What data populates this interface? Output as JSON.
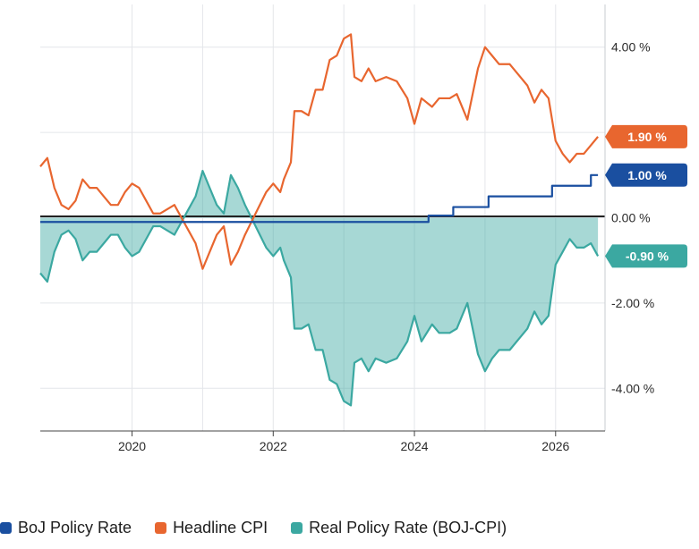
{
  "chart_data": {
    "type": "line",
    "x_tick_labels": [
      "2020",
      "2022",
      "2024",
      "2026"
    ],
    "y_tick_labels": [
      "4.00 %",
      "0.00 %",
      "-2.00 %",
      "-4.00 %"
    ],
    "xlim": [
      2018.7,
      2026.7
    ],
    "ylim": [
      -5.0,
      5.0
    ],
    "grid": true,
    "legend_position": "bottom-left",
    "series": [
      {
        "name": "BoJ Policy Rate",
        "key": "boj",
        "color": "#1a4fa0",
        "last_value_label": "1.00 %",
        "points": [
          [
            2018.7,
            -0.1
          ],
          [
            2024.2,
            -0.1
          ],
          [
            2024.2,
            0.05
          ],
          [
            2024.55,
            0.05
          ],
          [
            2024.55,
            0.25
          ],
          [
            2025.05,
            0.25
          ],
          [
            2025.05,
            0.5
          ],
          [
            2025.95,
            0.5
          ],
          [
            2025.95,
            0.75
          ],
          [
            2026.5,
            0.75
          ],
          [
            2026.5,
            1.0
          ],
          [
            2026.6,
            1.0
          ]
        ]
      },
      {
        "name": "Headline CPI",
        "key": "cpi",
        "color": "#e8662f",
        "last_value_label": "1.90 %",
        "points": [
          [
            2018.7,
            1.2
          ],
          [
            2018.8,
            1.4
          ],
          [
            2018.9,
            0.7
          ],
          [
            2019.0,
            0.3
          ],
          [
            2019.1,
            0.2
          ],
          [
            2019.2,
            0.4
          ],
          [
            2019.3,
            0.9
          ],
          [
            2019.4,
            0.7
          ],
          [
            2019.5,
            0.7
          ],
          [
            2019.6,
            0.5
          ],
          [
            2019.7,
            0.3
          ],
          [
            2019.8,
            0.3
          ],
          [
            2019.9,
            0.6
          ],
          [
            2020.0,
            0.8
          ],
          [
            2020.1,
            0.7
          ],
          [
            2020.2,
            0.4
          ],
          [
            2020.3,
            0.1
          ],
          [
            2020.4,
            0.1
          ],
          [
            2020.5,
            0.2
          ],
          [
            2020.6,
            0.3
          ],
          [
            2020.7,
            0.0
          ],
          [
            2020.8,
            -0.3
          ],
          [
            2020.9,
            -0.6
          ],
          [
            2021.0,
            -1.2
          ],
          [
            2021.1,
            -0.8
          ],
          [
            2021.2,
            -0.4
          ],
          [
            2021.3,
            -0.2
          ],
          [
            2021.4,
            -1.1
          ],
          [
            2021.5,
            -0.8
          ],
          [
            2021.6,
            -0.4
          ],
          [
            2021.75,
            0.1
          ],
          [
            2021.9,
            0.6
          ],
          [
            2022.0,
            0.8
          ],
          [
            2022.1,
            0.6
          ],
          [
            2022.15,
            0.9
          ],
          [
            2022.25,
            1.3
          ],
          [
            2022.3,
            2.5
          ],
          [
            2022.4,
            2.5
          ],
          [
            2022.5,
            2.4
          ],
          [
            2022.6,
            3.0
          ],
          [
            2022.7,
            3.0
          ],
          [
            2022.8,
            3.7
          ],
          [
            2022.9,
            3.8
          ],
          [
            2023.0,
            4.2
          ],
          [
            2023.1,
            4.3
          ],
          [
            2023.15,
            3.3
          ],
          [
            2023.25,
            3.2
          ],
          [
            2023.35,
            3.5
          ],
          [
            2023.45,
            3.2
          ],
          [
            2023.6,
            3.3
          ],
          [
            2023.75,
            3.2
          ],
          [
            2023.9,
            2.8
          ],
          [
            2024.0,
            2.2
          ],
          [
            2024.1,
            2.8
          ],
          [
            2024.25,
            2.6
          ],
          [
            2024.35,
            2.8
          ],
          [
            2024.5,
            2.8
          ],
          [
            2024.6,
            2.9
          ],
          [
            2024.75,
            2.3
          ],
          [
            2024.9,
            3.5
          ],
          [
            2025.0,
            4.0
          ],
          [
            2025.1,
            3.8
          ],
          [
            2025.2,
            3.6
          ],
          [
            2025.35,
            3.6
          ],
          [
            2025.5,
            3.3
          ],
          [
            2025.6,
            3.1
          ],
          [
            2025.7,
            2.7
          ],
          [
            2025.8,
            3.0
          ],
          [
            2025.9,
            2.8
          ],
          [
            2026.0,
            1.8
          ],
          [
            2026.1,
            1.5
          ],
          [
            2026.2,
            1.3
          ],
          [
            2026.3,
            1.5
          ],
          [
            2026.4,
            1.5
          ],
          [
            2026.5,
            1.7
          ],
          [
            2026.6,
            1.9
          ]
        ]
      },
      {
        "name": "Real Policy Rate (BOJ-CPI)",
        "key": "real",
        "color": "#3ba8a1",
        "last_value_label": "-0.90 %",
        "points": [
          [
            2018.7,
            -1.3
          ],
          [
            2018.8,
            -1.5
          ],
          [
            2018.9,
            -0.8
          ],
          [
            2019.0,
            -0.4
          ],
          [
            2019.1,
            -0.3
          ],
          [
            2019.2,
            -0.5
          ],
          [
            2019.3,
            -1.0
          ],
          [
            2019.4,
            -0.8
          ],
          [
            2019.5,
            -0.8
          ],
          [
            2019.6,
            -0.6
          ],
          [
            2019.7,
            -0.4
          ],
          [
            2019.8,
            -0.4
          ],
          [
            2019.9,
            -0.7
          ],
          [
            2020.0,
            -0.9
          ],
          [
            2020.1,
            -0.8
          ],
          [
            2020.2,
            -0.5
          ],
          [
            2020.3,
            -0.2
          ],
          [
            2020.4,
            -0.2
          ],
          [
            2020.5,
            -0.3
          ],
          [
            2020.6,
            -0.4
          ],
          [
            2020.7,
            -0.1
          ],
          [
            2020.8,
            0.2
          ],
          [
            2020.9,
            0.5
          ],
          [
            2021.0,
            1.1
          ],
          [
            2021.1,
            0.7
          ],
          [
            2021.2,
            0.3
          ],
          [
            2021.3,
            0.1
          ],
          [
            2021.4,
            1.0
          ],
          [
            2021.5,
            0.7
          ],
          [
            2021.6,
            0.3
          ],
          [
            2021.75,
            -0.2
          ],
          [
            2021.9,
            -0.7
          ],
          [
            2022.0,
            -0.9
          ],
          [
            2022.1,
            -0.7
          ],
          [
            2022.15,
            -1.0
          ],
          [
            2022.25,
            -1.4
          ],
          [
            2022.3,
            -2.6
          ],
          [
            2022.4,
            -2.6
          ],
          [
            2022.5,
            -2.5
          ],
          [
            2022.6,
            -3.1
          ],
          [
            2022.7,
            -3.1
          ],
          [
            2022.8,
            -3.8
          ],
          [
            2022.9,
            -3.9
          ],
          [
            2023.0,
            -4.3
          ],
          [
            2023.1,
            -4.4
          ],
          [
            2023.15,
            -3.4
          ],
          [
            2023.25,
            -3.3
          ],
          [
            2023.35,
            -3.6
          ],
          [
            2023.45,
            -3.3
          ],
          [
            2023.6,
            -3.4
          ],
          [
            2023.75,
            -3.3
          ],
          [
            2023.9,
            -2.9
          ],
          [
            2024.0,
            -2.3
          ],
          [
            2024.1,
            -2.9
          ],
          [
            2024.25,
            -2.5
          ],
          [
            2024.35,
            -2.7
          ],
          [
            2024.5,
            -2.7
          ],
          [
            2024.6,
            -2.6
          ],
          [
            2024.75,
            -2.0
          ],
          [
            2024.9,
            -3.2
          ],
          [
            2025.0,
            -3.6
          ],
          [
            2025.1,
            -3.3
          ],
          [
            2025.2,
            -3.1
          ],
          [
            2025.35,
            -3.1
          ],
          [
            2025.5,
            -2.8
          ],
          [
            2025.6,
            -2.6
          ],
          [
            2025.7,
            -2.2
          ],
          [
            2025.8,
            -2.5
          ],
          [
            2025.9,
            -2.3
          ],
          [
            2026.0,
            -1.1
          ],
          [
            2026.1,
            -0.8
          ],
          [
            2026.2,
            -0.5
          ],
          [
            2026.3,
            -0.7
          ],
          [
            2026.4,
            -0.7
          ],
          [
            2026.5,
            -0.6
          ],
          [
            2026.6,
            -0.9
          ]
        ]
      }
    ]
  }
}
